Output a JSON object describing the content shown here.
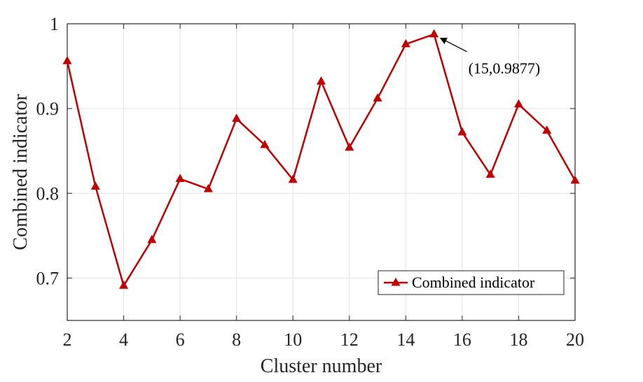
{
  "chart_data": {
    "type": "line",
    "title": "",
    "xlabel": "Cluster number",
    "ylabel": "Combined indicator",
    "xlim": [
      2,
      20
    ],
    "ylim": [
      0.65,
      1.0
    ],
    "grid": true,
    "legend_position": "bottom-right",
    "x_ticks": [
      2,
      4,
      6,
      8,
      10,
      12,
      14,
      16,
      18,
      20
    ],
    "x_tick_labels": [
      "2",
      "4",
      "6",
      "8",
      "10",
      "12",
      "14",
      "16",
      "18",
      "20"
    ],
    "y_ticks": [
      0.7,
      0.8,
      0.9,
      1.0
    ],
    "y_tick_labels": [
      "0.7",
      "0.8",
      "0.9",
      "1"
    ],
    "x": [
      2,
      3,
      4,
      5,
      6,
      7,
      8,
      9,
      10,
      11,
      12,
      13,
      14,
      15,
      16,
      17,
      18,
      19,
      20
    ],
    "series": [
      {
        "name": "Combined indicator",
        "color": "#c00000",
        "marker": "triangle",
        "values": [
          0.956,
          0.808,
          0.691,
          0.745,
          0.817,
          0.805,
          0.888,
          0.857,
          0.816,
          0.932,
          0.854,
          0.912,
          0.976,
          0.9877,
          0.872,
          0.822,
          0.905,
          0.874,
          0.815
        ]
      }
    ],
    "annotation": {
      "text": "(15,0.9877)",
      "target_x": 15,
      "target_y": 0.9877
    }
  }
}
